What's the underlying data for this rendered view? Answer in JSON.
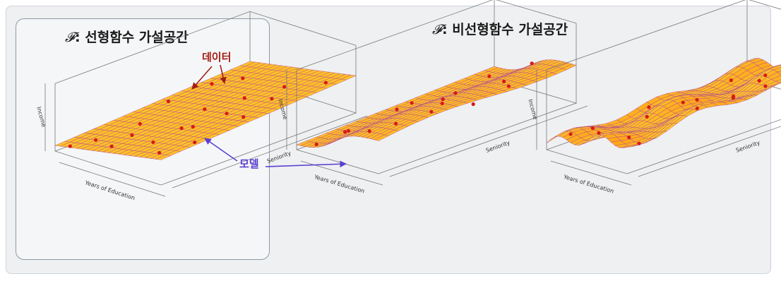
{
  "headings": {
    "left_symbol": "𝓕",
    "left_text": ": 선형함수 가설공간",
    "right_symbol": "𝓕",
    "right_text": ": 비선형함수 가설공간"
  },
  "annotations": {
    "data": "데이터",
    "model": "모델"
  },
  "axes": {
    "x": "Years of Education",
    "y": "Seniority",
    "z": "Income"
  },
  "colors": {
    "surface": "#ffc21a",
    "mesh": "#b64a8a",
    "points": "#d81b14",
    "data_arrow": "#a31d12",
    "model_arrow": "#5b3fd0",
    "panel_border": "#8e99aa"
  }
}
